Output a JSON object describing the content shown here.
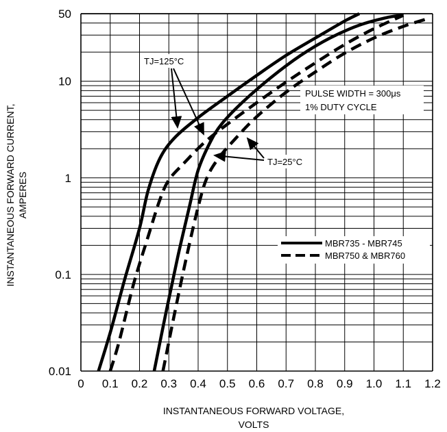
{
  "chart_data": {
    "type": "line",
    "xlabel_lines": [
      "INSTANTANEOUS FORWARD VOLTAGE,",
      "VOLTS"
    ],
    "ylabel_lines": [
      "INSTANTANEOUS FORWARD CURRENT,",
      "AMPERES"
    ],
    "xlim": [
      0,
      1.2
    ],
    "ylim": [
      0.01,
      50
    ],
    "yscale": "log",
    "grid": true,
    "x_ticks": [
      "0",
      "0.1",
      "0.2",
      "0.3",
      "0.4",
      "0.5",
      "0.6",
      "0.7",
      "0.8",
      "0.9",
      "1.0",
      "1.1",
      "1.2"
    ],
    "y_ticks": [
      "0.01",
      "0.1",
      "1",
      "10",
      "50"
    ],
    "legend": {
      "placement": "right",
      "entries": [
        {
          "label": "MBR735 - MBR745",
          "style": "solid"
        },
        {
          "label": "MBR750 & MBR760",
          "style": "dashed"
        }
      ]
    },
    "annotations": {
      "tj125": "TJ=125°C",
      "tj25": "TJ=25°C",
      "pulse_width": "PULSE WIDTH = 300μs",
      "duty_cycle": "1% DUTY CYCLE"
    },
    "series": [
      {
        "style": "solid",
        "temp": "125",
        "x": [
          0.06,
          0.1,
          0.15,
          0.2,
          0.23,
          0.27,
          0.32,
          0.4,
          0.5,
          0.6,
          0.7,
          0.8,
          0.9,
          0.95
        ],
        "y": [
          0.01,
          0.025,
          0.09,
          0.3,
          0.75,
          1.6,
          2.6,
          4.2,
          7.0,
          11.5,
          18.5,
          28.0,
          42.0,
          50.0
        ]
      },
      {
        "style": "dashed",
        "temp": "125",
        "x": [
          0.1,
          0.13,
          0.18,
          0.23,
          0.27,
          0.3,
          0.35,
          0.42,
          0.5,
          0.6,
          0.7,
          0.8,
          0.9,
          1.0,
          1.1
        ],
        "y": [
          0.01,
          0.02,
          0.08,
          0.25,
          0.6,
          0.95,
          1.4,
          2.3,
          3.6,
          6.0,
          9.8,
          15.5,
          24.0,
          35.0,
          48.0
        ]
      },
      {
        "style": "solid",
        "temp": "25",
        "x": [
          0.25,
          0.29,
          0.33,
          0.37,
          0.4,
          0.44,
          0.48,
          0.55,
          0.65,
          0.75,
          0.85,
          0.95,
          1.05,
          1.1
        ],
        "y": [
          0.01,
          0.04,
          0.15,
          0.5,
          1.2,
          2.3,
          3.6,
          6.0,
          11.0,
          18.5,
          28.0,
          38.0,
          46.0,
          48.0
        ]
      },
      {
        "style": "dashed",
        "temp": "25",
        "x": [
          0.28,
          0.32,
          0.36,
          0.4,
          0.43,
          0.47,
          0.53,
          0.6,
          0.7,
          0.8,
          0.9,
          1.0,
          1.1,
          1.19
        ],
        "y": [
          0.01,
          0.04,
          0.15,
          0.5,
          1.0,
          1.6,
          2.6,
          4.3,
          7.7,
          12.5,
          19.5,
          28.0,
          37.0,
          45.0
        ]
      }
    ]
  }
}
